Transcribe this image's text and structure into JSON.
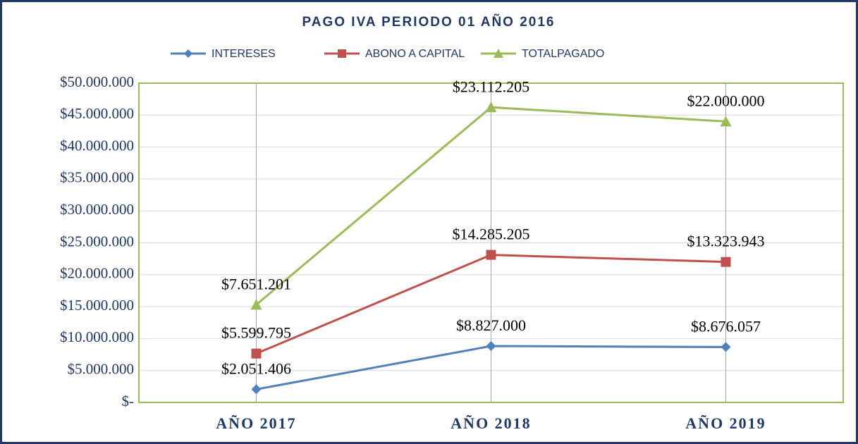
{
  "chart_data": {
    "type": "line",
    "stacked": true,
    "title": "PAGO IVA PERIODO 01 AÑO 2016",
    "categories": [
      "AÑO 2017",
      "AÑO 2018",
      "AÑO 2019"
    ],
    "series": [
      {
        "name": "INTERESES",
        "color": "#4f81bd",
        "marker": "diamond",
        "values": [
          2051406,
          8827000,
          8676057
        ],
        "value_labels": [
          "$2.051.406",
          "$8.827.000",
          "$8.676.057"
        ]
      },
      {
        "name": "ABONO A CAPITAL",
        "color": "#c0504d",
        "marker": "square",
        "values": [
          5599795,
          14285205,
          13323943
        ],
        "value_labels": [
          "$5.599.795",
          "$14.285.205",
          "$13.323.943"
        ]
      },
      {
        "name": "TOTALPAGADO",
        "color": "#9bbb59",
        "marker": "triangle",
        "values": [
          7651201,
          23112205,
          22000000
        ],
        "value_labels": [
          "$7.651.201",
          "$23.112.205",
          "$22.000.000"
        ]
      }
    ],
    "ylim": [
      0,
      50000000
    ],
    "yticks": [
      {
        "value": 0,
        "label": "$-"
      },
      {
        "value": 5000000,
        "label": "$5.000.000"
      },
      {
        "value": 10000000,
        "label": "$10.000.000"
      },
      {
        "value": 15000000,
        "label": "$15.000.000"
      },
      {
        "value": 20000000,
        "label": "$20.000.000"
      },
      {
        "value": 25000000,
        "label": "$25.000.000"
      },
      {
        "value": 30000000,
        "label": "$30.000.000"
      },
      {
        "value": 35000000,
        "label": "$35.000.000"
      },
      {
        "value": 40000000,
        "label": "$40.000.000"
      },
      {
        "value": 45000000,
        "label": "$45.000.000"
      },
      {
        "value": 50000000,
        "label": "$50.000.000"
      }
    ],
    "grid": true,
    "legend": "top"
  }
}
